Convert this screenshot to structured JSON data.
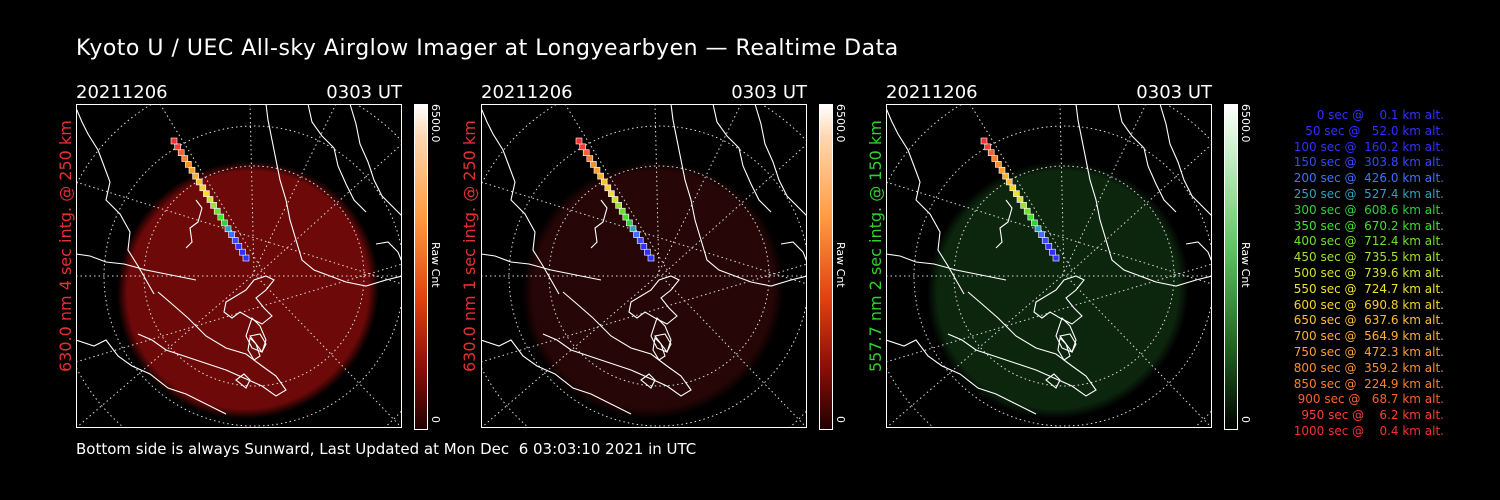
{
  "title": "Kyoto U / UEC All-sky Airglow Imager at Longyearbyen — Realtime Data",
  "footer": "Bottom side is always Sunward, Last Updated at Mon Dec  6 03:03:10 2021 in UTC",
  "colors": {
    "red_label": "#e53030",
    "green_label": "#30d030"
  },
  "panels": [
    {
      "date": "20211206",
      "time": "0303 UT",
      "label": "630.0 nm 4 sec intg. @ 250 km",
      "cbar_max": "6500.0",
      "cbar_unit": "Raw Cnt",
      "cbar_min": "0",
      "glow": "#7a0a0a",
      "glow_opacity": 0.9,
      "scheme": "red"
    },
    {
      "date": "20211206",
      "time": "0303 UT",
      "label": "630.0 nm 1 sec intg. @ 250 km",
      "cbar_max": "6500.0",
      "cbar_unit": "Raw Cnt",
      "cbar_min": "0",
      "glow": "#2a0606",
      "glow_opacity": 0.9,
      "scheme": "red"
    },
    {
      "date": "20211206",
      "time": "0303 UT",
      "label": "557.7 nm 2 sec intg. @ 150 km",
      "cbar_max": "6500.0",
      "cbar_unit": "Raw Cnt",
      "cbar_min": "0",
      "glow": "#0e2a10",
      "glow_opacity": 0.9,
      "scheme": "green"
    }
  ],
  "legend": [
    {
      "text": "0 sec @    0.1 km alt.",
      "color": "#3030ff"
    },
    {
      "text": "50 sec @   52.0 km alt.",
      "color": "#3030ff"
    },
    {
      "text": "100 sec @  160.2 km alt.",
      "color": "#3030ff"
    },
    {
      "text": "150 sec @  303.8 km alt.",
      "color": "#3848ff"
    },
    {
      "text": "200 sec @  426.0 km alt.",
      "color": "#4070ff"
    },
    {
      "text": "250 sec @  527.4 km alt.",
      "color": "#30a0c0"
    },
    {
      "text": "300 sec @  608.6 km alt.",
      "color": "#30d040"
    },
    {
      "text": "350 sec @  670.2 km alt.",
      "color": "#40e030"
    },
    {
      "text": "400 sec @  712.4 km alt.",
      "color": "#70e030"
    },
    {
      "text": "450 sec @  735.5 km alt.",
      "color": "#a0e030"
    },
    {
      "text": "500 sec @  739.6 km alt.",
      "color": "#d0e030"
    },
    {
      "text": "550 sec @  724.7 km alt.",
      "color": "#f0e030"
    },
    {
      "text": "600 sec @  690.8 km alt.",
      "color": "#f8d030"
    },
    {
      "text": "650 sec @  637.6 km alt.",
      "color": "#f8c030"
    },
    {
      "text": "700 sec @  564.9 km alt.",
      "color": "#f8b030"
    },
    {
      "text": "750 sec @  472.3 km alt.",
      "color": "#f8a030"
    },
    {
      "text": "800 sec @  359.2 km alt.",
      "color": "#f89030"
    },
    {
      "text": "850 sec @  224.9 km alt.",
      "color": "#f88030"
    },
    {
      "text": "900 sec @   68.7 km alt.",
      "color": "#f86030"
    },
    {
      "text": "950 sec @    6.2 km alt.",
      "color": "#f84030"
    },
    {
      "text": "1000 sec @    0.4 km alt.",
      "color": "#f83030"
    }
  ]
}
